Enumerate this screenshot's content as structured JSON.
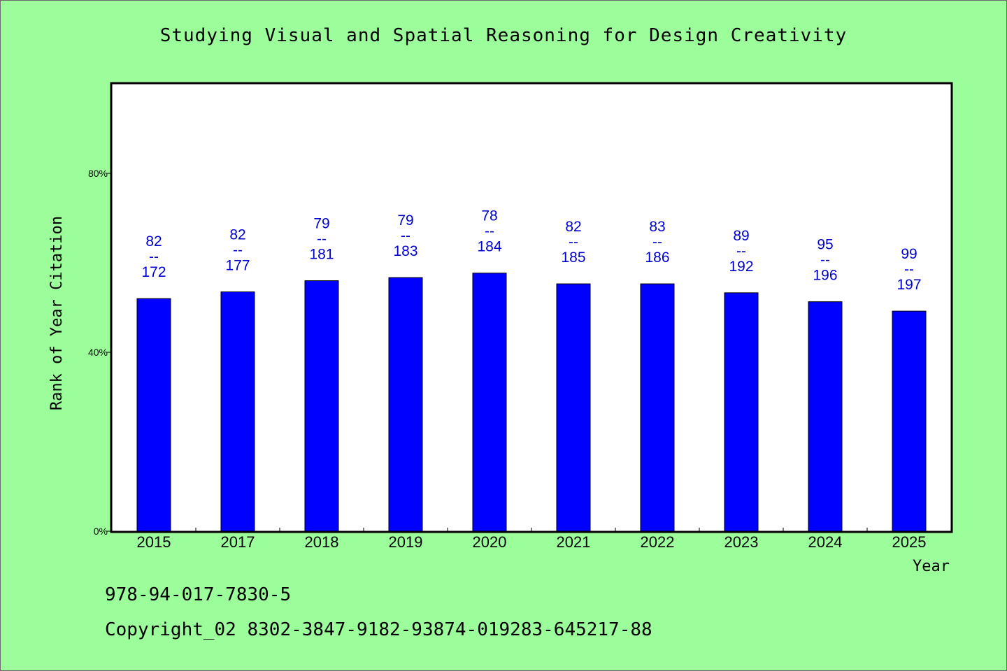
{
  "title": "Studying Visual and Spatial Reasoning for Design Creativity",
  "footer": {
    "isbn": "978-94-017-7830-5",
    "copyright": "Copyright_02 8302-3847-9182-93874-019283-645217-88"
  },
  "colors": {
    "background": "#9cfe9a",
    "bar": "#0000ff",
    "value_label": "#0000cc"
  },
  "chart_data": {
    "type": "bar",
    "title": "Studying Visual and Spatial Reasoning for Design Creativity",
    "xlabel": "Year",
    "ylabel": "Rank of Year Citation",
    "categories": [
      "2015",
      "2017",
      "2018",
      "2019",
      "2020",
      "2021",
      "2022",
      "2023",
      "2024",
      "2025"
    ],
    "values": [
      52,
      53.5,
      56,
      56.7,
      57.7,
      55.3,
      55.3,
      53.3,
      51.3,
      49.2
    ],
    "labels": [
      [
        "82",
        "--",
        "172"
      ],
      [
        "82",
        "--",
        "177"
      ],
      [
        "79",
        "--",
        "181"
      ],
      [
        "79",
        "--",
        "183"
      ],
      [
        "78",
        "--",
        "184"
      ],
      [
        "82",
        "--",
        "185"
      ],
      [
        "83",
        "--",
        "186"
      ],
      [
        "89",
        "--",
        "192"
      ],
      [
        "95",
        "--",
        "196"
      ],
      [
        "99",
        "--",
        "197"
      ]
    ],
    "yticks": [
      0,
      40,
      80
    ],
    "ytick_labels": [
      "0%",
      "40%",
      "80%"
    ],
    "ylim": [
      0,
      100
    ],
    "grid": false,
    "legend": "none"
  }
}
